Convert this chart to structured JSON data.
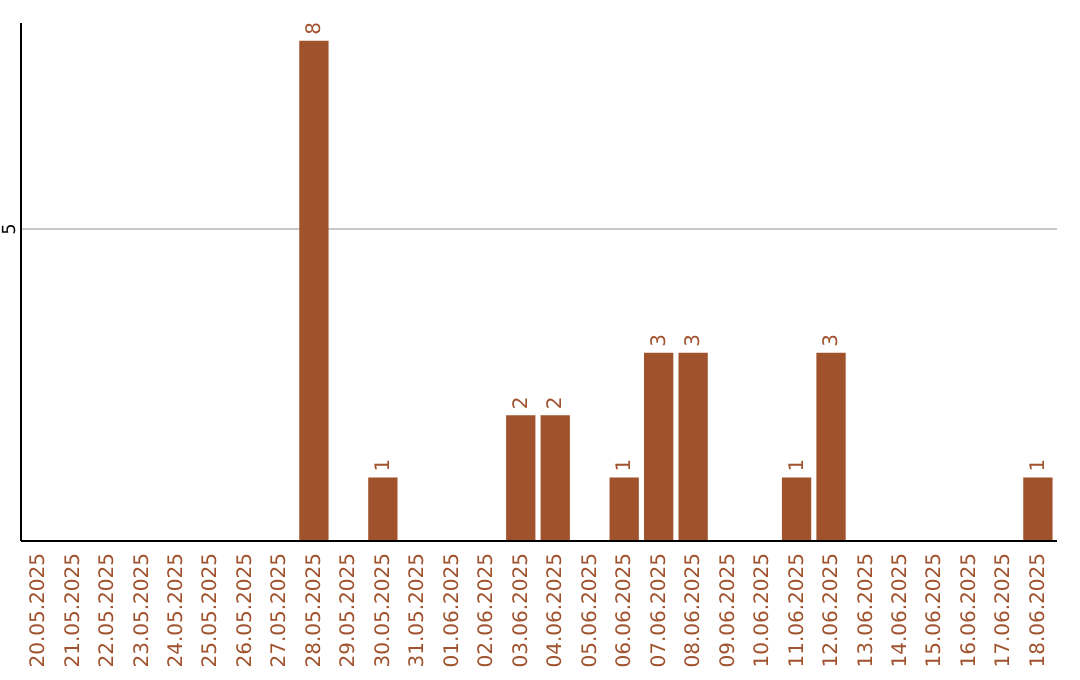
{
  "chart_data": {
    "type": "bar",
    "categories": [
      "20.05.2025",
      "21.05.2025",
      "22.05.2025",
      "23.05.2025",
      "24.05.2025",
      "25.05.2025",
      "26.05.2025",
      "27.05.2025",
      "28.05.2025",
      "29.05.2025",
      "30.05.2025",
      "31.05.2025",
      "01.06.2025",
      "02.06.2025",
      "03.06.2025",
      "04.06.2025",
      "05.06.2025",
      "06.06.2025",
      "07.06.2025",
      "08.06.2025",
      "09.06.2025",
      "10.06.2025",
      "11.06.2025",
      "12.06.2025",
      "13.06.2025",
      "14.06.2025",
      "15.06.2025",
      "16.06.2025",
      "17.06.2025",
      "18.06.2025"
    ],
    "values": [
      0,
      0,
      0,
      0,
      0,
      0,
      0,
      0,
      8,
      0,
      1,
      0,
      0,
      0,
      2,
      2,
      0,
      1,
      3,
      3,
      0,
      0,
      1,
      3,
      0,
      0,
      0,
      0,
      0,
      1
    ],
    "value_labels": [
      null,
      null,
      null,
      null,
      null,
      null,
      null,
      null,
      "8",
      null,
      "1",
      null,
      null,
      null,
      "2",
      "2",
      null,
      "1",
      "3",
      "3",
      null,
      null,
      "1",
      "3",
      null,
      null,
      null,
      null,
      null,
      "1"
    ],
    "color": "#a0522d",
    "ylim": [
      0,
      8.3
    ],
    "yticks": [
      5
    ],
    "grid": "y"
  }
}
